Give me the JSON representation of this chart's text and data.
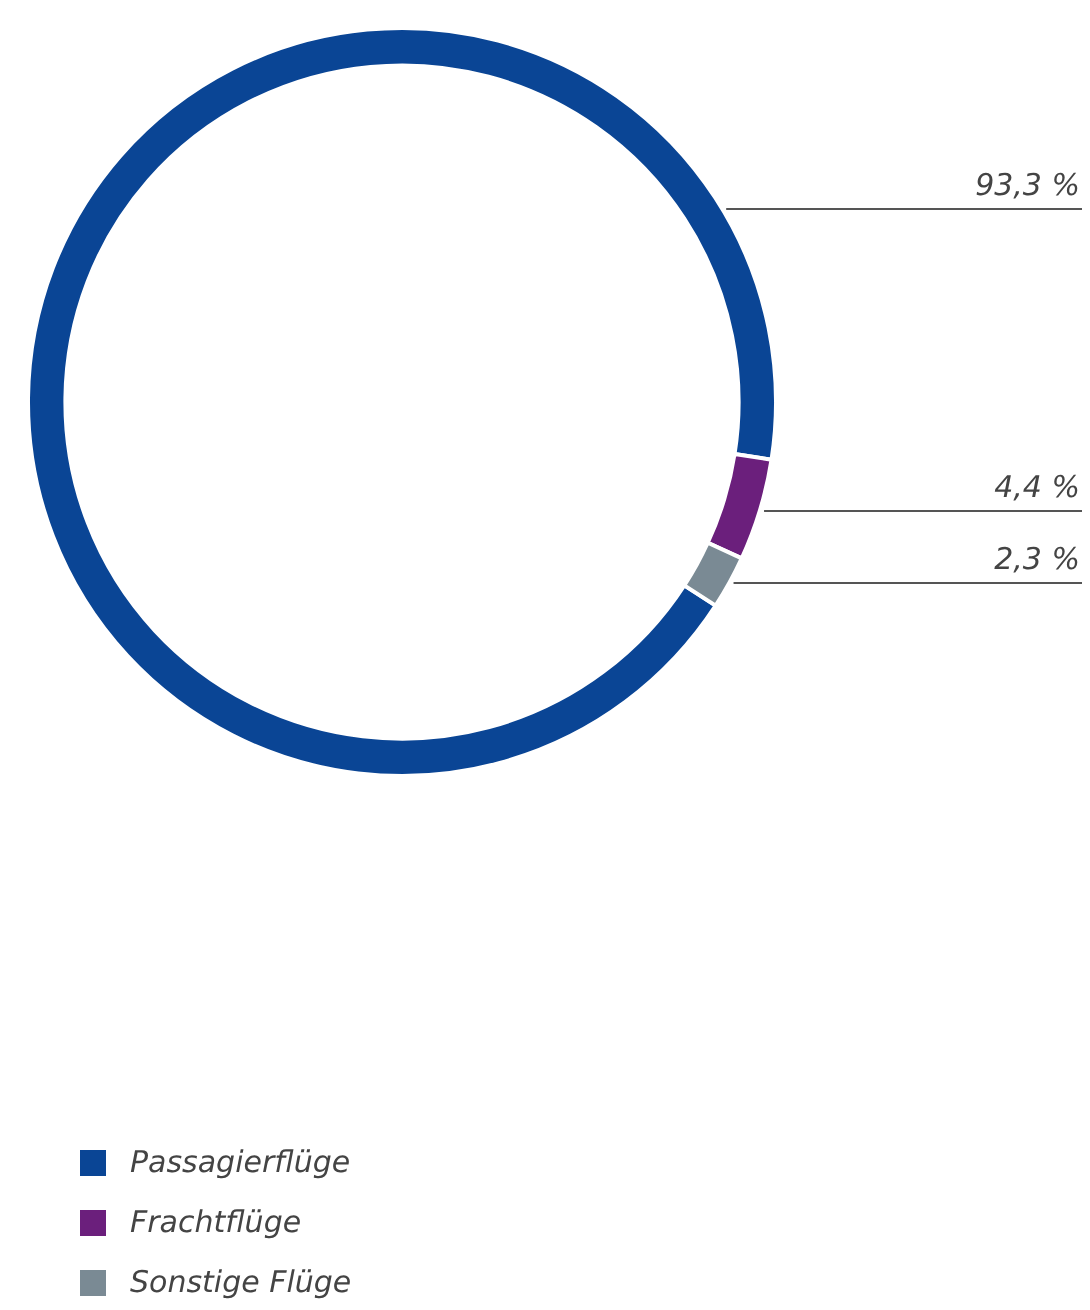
{
  "chart_data": {
    "type": "donut",
    "categories": [
      "Passagierflüge",
      "Frachtflüge",
      "Sonstige Flüge"
    ],
    "values": [
      93.3,
      4.4,
      2.3
    ],
    "colors": [
      "#0a4595",
      "#6b1f7c",
      "#7a8a94"
    ],
    "value_labels": [
      "93,3 %",
      "4,4 %",
      "2,3 %"
    ],
    "legend": "bottom left"
  }
}
